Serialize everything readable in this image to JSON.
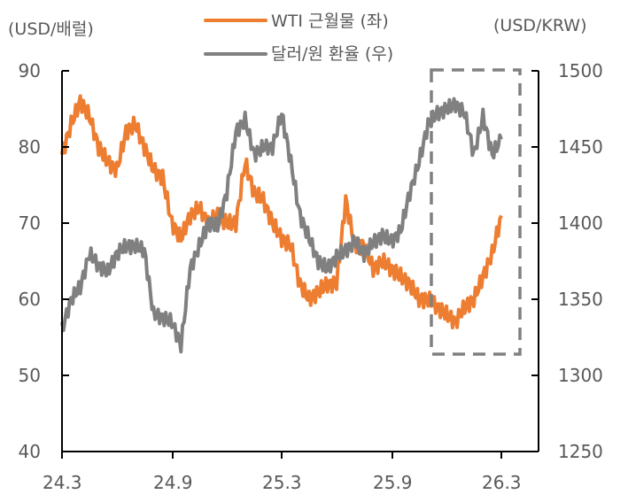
{
  "chart_data": {
    "type": "line",
    "title": "",
    "left_axis": {
      "label": "(USD/배럴)",
      "ylim": [
        40,
        90
      ],
      "ticks": [
        "90",
        "80",
        "70",
        "60",
        "50",
        "40"
      ]
    },
    "right_axis": {
      "label": "(USD/KRW)",
      "ylim": [
        1250,
        1500
      ],
      "ticks": [
        "1500",
        "1450",
        "1400",
        "1350",
        "1300",
        "1250"
      ]
    },
    "x_ticks": [
      "24.3",
      "24.9",
      "25.3",
      "25.9",
      "26.3"
    ],
    "x": [
      "24.3",
      "24.3b",
      "24.4",
      "24.4b",
      "24.5",
      "24.5b",
      "24.6",
      "24.6b",
      "24.7",
      "24.7b",
      "24.8",
      "24.8b",
      "24.9",
      "24.9b",
      "24.10",
      "24.10b",
      "24.11",
      "24.11b",
      "24.12",
      "24.12b",
      "25.1",
      "25.1b",
      "25.2",
      "25.2b",
      "25.3",
      "25.3b",
      "25.4",
      "25.4b",
      "25.5",
      "25.5b",
      "25.6",
      "25.6b",
      "25.7",
      "25.7b",
      "25.8",
      "25.8b",
      "25.9",
      "25.9b",
      "25.10",
      "25.10b",
      "25.11",
      "25.11b",
      "25.12",
      "25.12b",
      "26.1",
      "26.1b",
      "26.2",
      "26.2b",
      "26.3"
    ],
    "series": [
      {
        "name": "WTI 근월물 (좌)",
        "axis": "left",
        "color": "#ED7D31",
        "values": [
          79,
          83,
          86,
          84,
          80,
          78,
          77,
          82,
          83,
          80,
          77,
          76,
          70,
          68,
          71,
          72,
          70,
          71,
          70,
          70,
          78,
          74,
          73,
          70,
          68,
          67,
          62,
          60,
          61,
          62,
          62,
          73,
          67,
          67,
          64,
          65,
          64,
          63,
          62,
          60,
          60,
          59,
          58,
          57,
          59,
          60,
          63,
          66,
          71
        ]
      },
      {
        "name": "달러/원 환율 (우)",
        "axis": "right",
        "color": "#808080",
        "values": [
          1330,
          1350,
          1358,
          1380,
          1372,
          1368,
          1380,
          1385,
          1385,
          1382,
          1340,
          1338,
          1335,
          1320,
          1370,
          1385,
          1400,
          1398,
          1420,
          1460,
          1468,
          1445,
          1450,
          1450,
          1472,
          1440,
          1405,
          1390,
          1375,
          1370,
          1378,
          1382,
          1388,
          1380,
          1387,
          1392,
          1388,
          1395,
          1420,
          1440,
          1465,
          1472,
          1475,
          1478,
          1472,
          1445,
          1470,
          1445,
          1455
        ]
      }
    ],
    "legend": [
      "WTI 근월물 (좌)",
      "달러/원 환율 (우)"
    ],
    "legend_position": "top-center",
    "annotation": "dashed box highlighting 25.11 – 26.3",
    "grid": false
  },
  "labels": {
    "left_unit": "(USD/배럴)",
    "right_unit": "(USD/KRW)",
    "legend_wti": "WTI 근월물 (좌)",
    "legend_fx": "달러/원 환율 (우)",
    "left_ticks": [
      "90",
      "80",
      "70",
      "60",
      "50",
      "40"
    ],
    "right_ticks": [
      "1500",
      "1450",
      "1400",
      "1350",
      "1300",
      "1250"
    ],
    "x_ticks": [
      "24.3",
      "24.9",
      "25.3",
      "25.9",
      "26.3"
    ]
  }
}
